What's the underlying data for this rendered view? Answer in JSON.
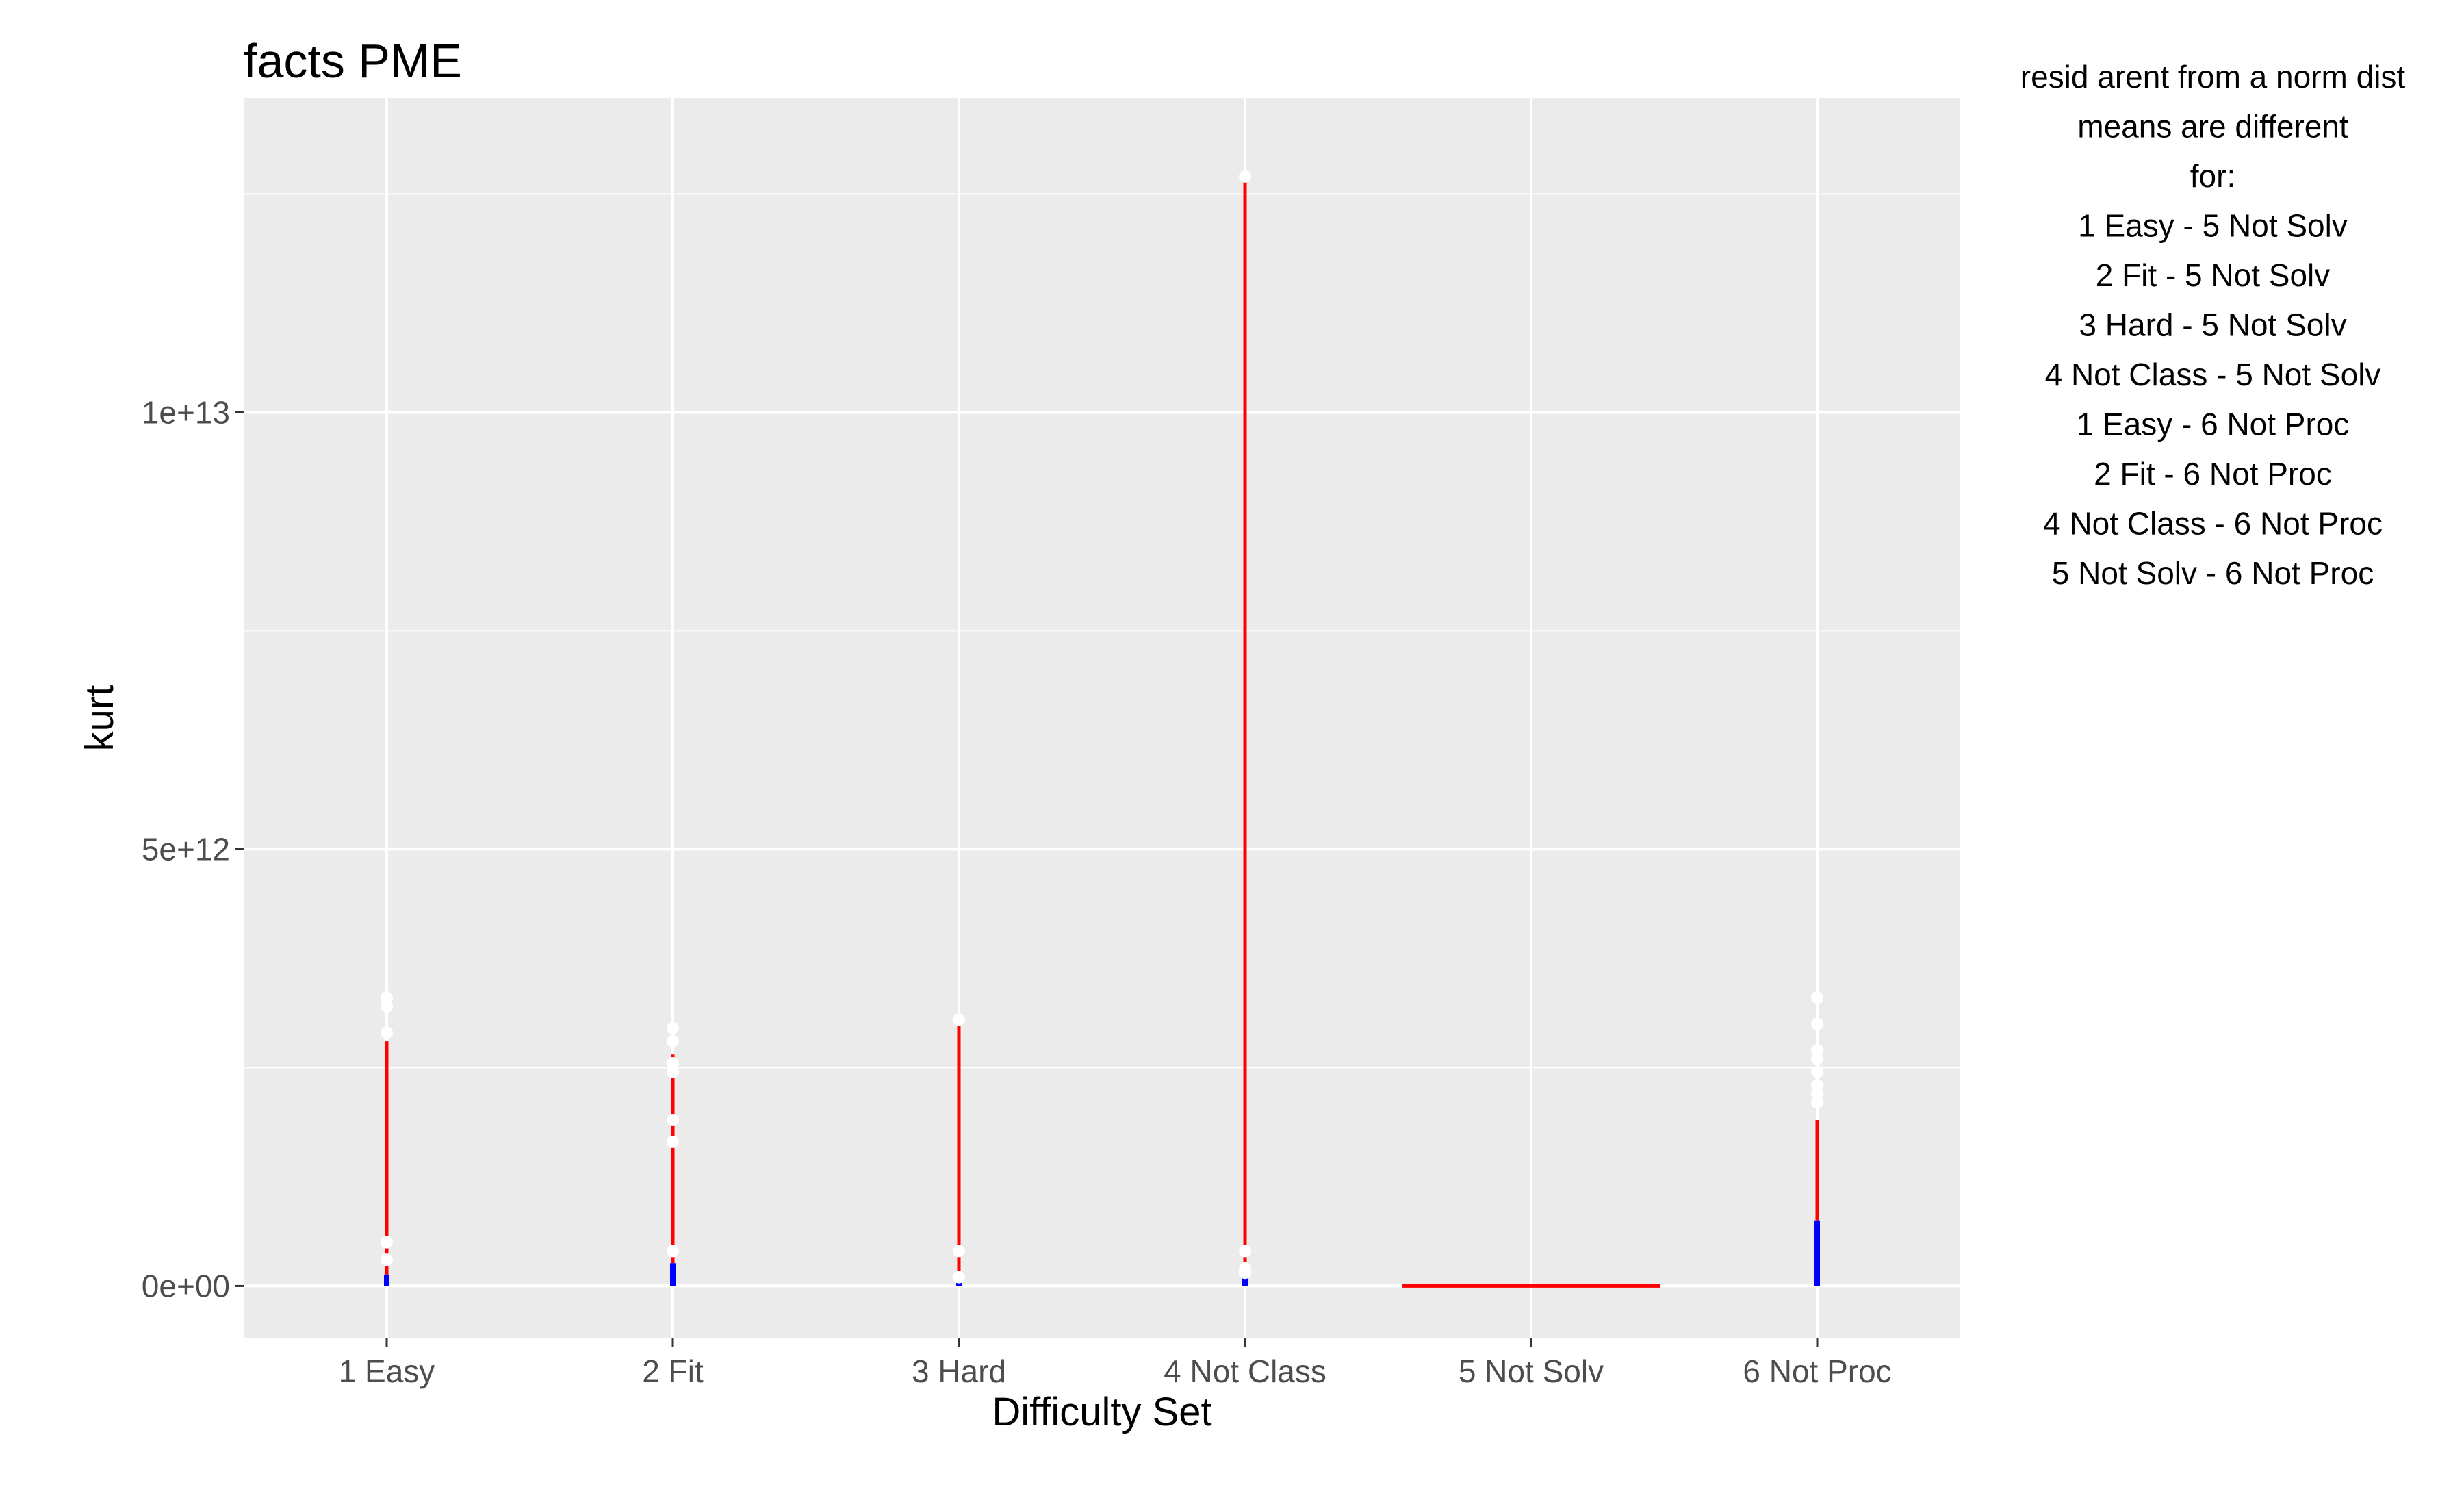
{
  "chart_data": {
    "type": "boxplot",
    "title": "facts PME",
    "xlabel": "Difficulty Set",
    "ylabel": "kurt",
    "categories": [
      "1 Easy",
      "2 Fit",
      "3 Hard",
      "4 Not Class",
      "5 Not Solv",
      "6 Not Proc"
    ],
    "ylim": [
      -600000000000,
      13600000000000
    ],
    "y_ticks": [
      0,
      5000000000000,
      10000000000000
    ],
    "y_tick_labels": [
      "0e+00",
      "5e+12",
      "1e+13"
    ],
    "grid": true,
    "colors": {
      "median": "#0000ff",
      "whisker": "#ff0000",
      "outlier": "#ffffff",
      "panel": "#ebebeb",
      "gridline": "#ffffff"
    },
    "series": [
      {
        "category": "1 Easy",
        "median": 70000000000,
        "q3": 130000000000,
        "whisker_high": 2800000000000,
        "outliers": [
          3300000000000,
          3200000000000,
          2900000000000,
          500000000000,
          300000000000
        ]
      },
      {
        "category": "2 Fit",
        "median": 40000000000,
        "q3": 260000000000,
        "whisker_high": 2650000000000,
        "outliers": [
          2950000000000,
          2800000000000,
          2550000000000,
          2450000000000,
          1900000000000,
          1650000000000,
          400000000000
        ]
      },
      {
        "category": "3 Hard",
        "median": 60000000000,
        "q3": 100000000000,
        "whisker_high": 3050000000000,
        "outliers": [
          3050000000000,
          400000000000,
          100000000000
        ]
      },
      {
        "category": "4 Not Class",
        "median": 60000000000,
        "q3": 110000000000,
        "whisker_high": 12700000000000,
        "outliers": [
          12700000000000,
          400000000000,
          200000000000,
          150000000000
        ]
      },
      {
        "category": "5 Not Solv",
        "median": 0,
        "q3": 0,
        "whisker_high": 0,
        "flat_span": true,
        "outliers": []
      },
      {
        "category": "6 Not Proc",
        "median": 100000000000,
        "q3": 750000000000,
        "whisker_high": 1900000000000,
        "outliers": [
          3300000000000,
          3000000000000,
          2700000000000,
          2600000000000,
          2450000000000,
          2300000000000,
          2200000000000,
          2100000000000
        ]
      }
    ]
  },
  "annotation": {
    "lines": [
      "resid arent from a norm dist",
      "means are different",
      "for:",
      "1 Easy - 5 Not Solv",
      "2 Fit - 5 Not Solv",
      "3 Hard - 5 Not Solv",
      "4 Not Class - 5 Not Solv",
      "1 Easy - 6 Not Proc",
      "2 Fit - 6 Not Proc",
      "4 Not Class - 6 Not Proc",
      "5 Not Solv - 6 Not Proc"
    ]
  }
}
